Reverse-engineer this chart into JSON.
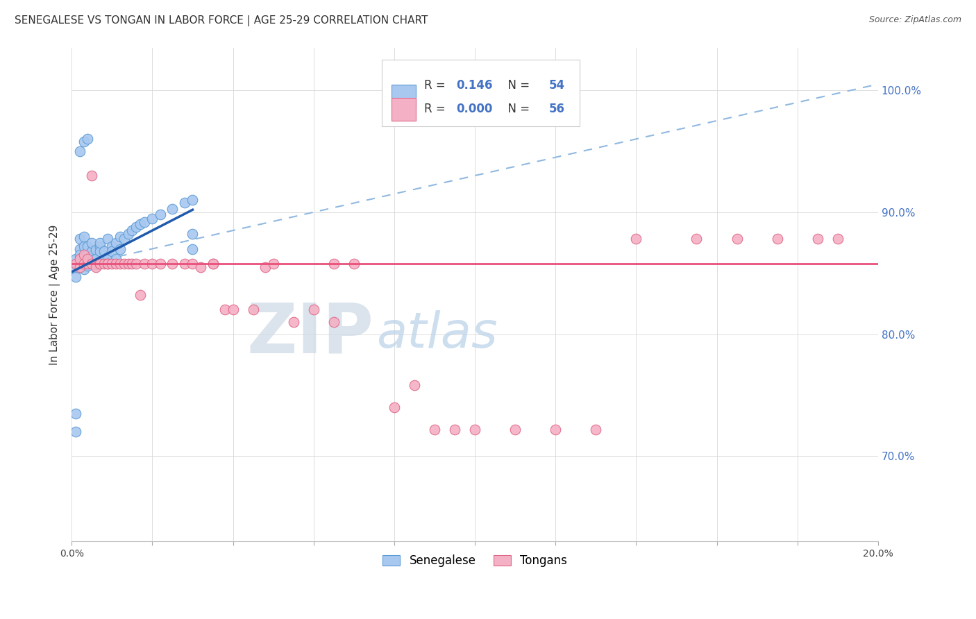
{
  "title": "SENEGALESE VS TONGAN IN LABOR FORCE | AGE 25-29 CORRELATION CHART",
  "source": "Source: ZipAtlas.com",
  "ylabel": "In Labor Force | Age 25-29",
  "xmin": 0.0,
  "xmax": 0.2,
  "ymin": 0.63,
  "ymax": 1.035,
  "yticks": [
    0.7,
    0.8,
    0.9,
    1.0
  ],
  "ytick_labels": [
    "70.0%",
    "80.0%",
    "90.0%",
    "100.0%"
  ],
  "xticks": [
    0.0,
    0.02,
    0.04,
    0.06,
    0.08,
    0.1,
    0.12,
    0.14,
    0.16,
    0.18,
    0.2
  ],
  "senegalese_color": "#a8c8f0",
  "senegalese_edge": "#5b9bd5",
  "tongan_color": "#f4b0c4",
  "tongan_edge": "#e06888",
  "trend_blue_color": "#1f5aad",
  "trend_pink_color": "#e8507a",
  "dashed_color": "#90b8e0",
  "watermark_zip_color": "#d8e8f0",
  "watermark_atlas_color": "#c0d8ef",
  "R_senegalese": 0.146,
  "N_senegalese": 54,
  "R_tongan": 0.0,
  "N_tongan": 56,
  "background_color": "#ffffff",
  "grid_color": "#d8d8d8",
  "blue_line_x0": 0.0,
  "blue_line_x1": 0.03,
  "blue_line_y0": 0.851,
  "blue_line_y1": 0.902,
  "dashed_line_x0": 0.0,
  "dashed_line_x1": 0.2,
  "dashed_line_y0": 0.855,
  "dashed_line_y1": 1.005,
  "pink_line_y": 0.858,
  "senegalese_x": [
    0.001,
    0.001,
    0.001,
    0.002,
    0.002,
    0.002,
    0.002,
    0.003,
    0.003,
    0.003,
    0.003,
    0.003,
    0.004,
    0.004,
    0.004,
    0.004,
    0.005,
    0.005,
    0.005,
    0.005,
    0.006,
    0.006,
    0.006,
    0.007,
    0.007,
    0.007,
    0.008,
    0.008,
    0.009,
    0.009,
    0.01,
    0.01,
    0.011,
    0.011,
    0.012,
    0.012,
    0.013,
    0.014,
    0.015,
    0.016,
    0.017,
    0.018,
    0.02,
    0.022,
    0.025,
    0.028,
    0.03,
    0.001,
    0.001,
    0.002,
    0.003,
    0.004,
    0.03,
    0.03
  ],
  "senegalese_y": [
    0.862,
    0.854,
    0.847,
    0.87,
    0.865,
    0.878,
    0.858,
    0.872,
    0.88,
    0.863,
    0.858,
    0.853,
    0.865,
    0.86,
    0.872,
    0.856,
    0.864,
    0.868,
    0.875,
    0.858,
    0.869,
    0.862,
    0.857,
    0.872,
    0.868,
    0.875,
    0.868,
    0.86,
    0.878,
    0.863,
    0.872,
    0.868,
    0.875,
    0.862,
    0.88,
    0.87,
    0.878,
    0.882,
    0.885,
    0.888,
    0.89,
    0.892,
    0.895,
    0.898,
    0.903,
    0.908,
    0.91,
    0.72,
    0.735,
    0.95,
    0.958,
    0.96,
    0.87,
    0.882
  ],
  "tongan_x": [
    0.001,
    0.002,
    0.002,
    0.003,
    0.003,
    0.004,
    0.004,
    0.005,
    0.005,
    0.006,
    0.007,
    0.007,
    0.008,
    0.009,
    0.009,
    0.01,
    0.011,
    0.012,
    0.013,
    0.014,
    0.015,
    0.016,
    0.017,
    0.018,
    0.02,
    0.022,
    0.025,
    0.028,
    0.03,
    0.032,
    0.035,
    0.035,
    0.038,
    0.04,
    0.045,
    0.048,
    0.05,
    0.055,
    0.06,
    0.065,
    0.065,
    0.07,
    0.08,
    0.085,
    0.09,
    0.095,
    0.1,
    0.11,
    0.12,
    0.13,
    0.14,
    0.155,
    0.165,
    0.175,
    0.185,
    0.19
  ],
  "tongan_y": [
    0.858,
    0.855,
    0.862,
    0.858,
    0.865,
    0.858,
    0.862,
    0.858,
    0.93,
    0.855,
    0.858,
    0.858,
    0.858,
    0.858,
    0.858,
    0.858,
    0.858,
    0.858,
    0.858,
    0.858,
    0.858,
    0.858,
    0.832,
    0.858,
    0.858,
    0.858,
    0.858,
    0.858,
    0.858,
    0.855,
    0.858,
    0.858,
    0.82,
    0.82,
    0.82,
    0.855,
    0.858,
    0.81,
    0.82,
    0.858,
    0.81,
    0.858,
    0.74,
    0.758,
    0.722,
    0.722,
    0.722,
    0.722,
    0.722,
    0.722,
    0.878,
    0.878,
    0.878,
    0.878,
    0.878,
    0.878
  ]
}
